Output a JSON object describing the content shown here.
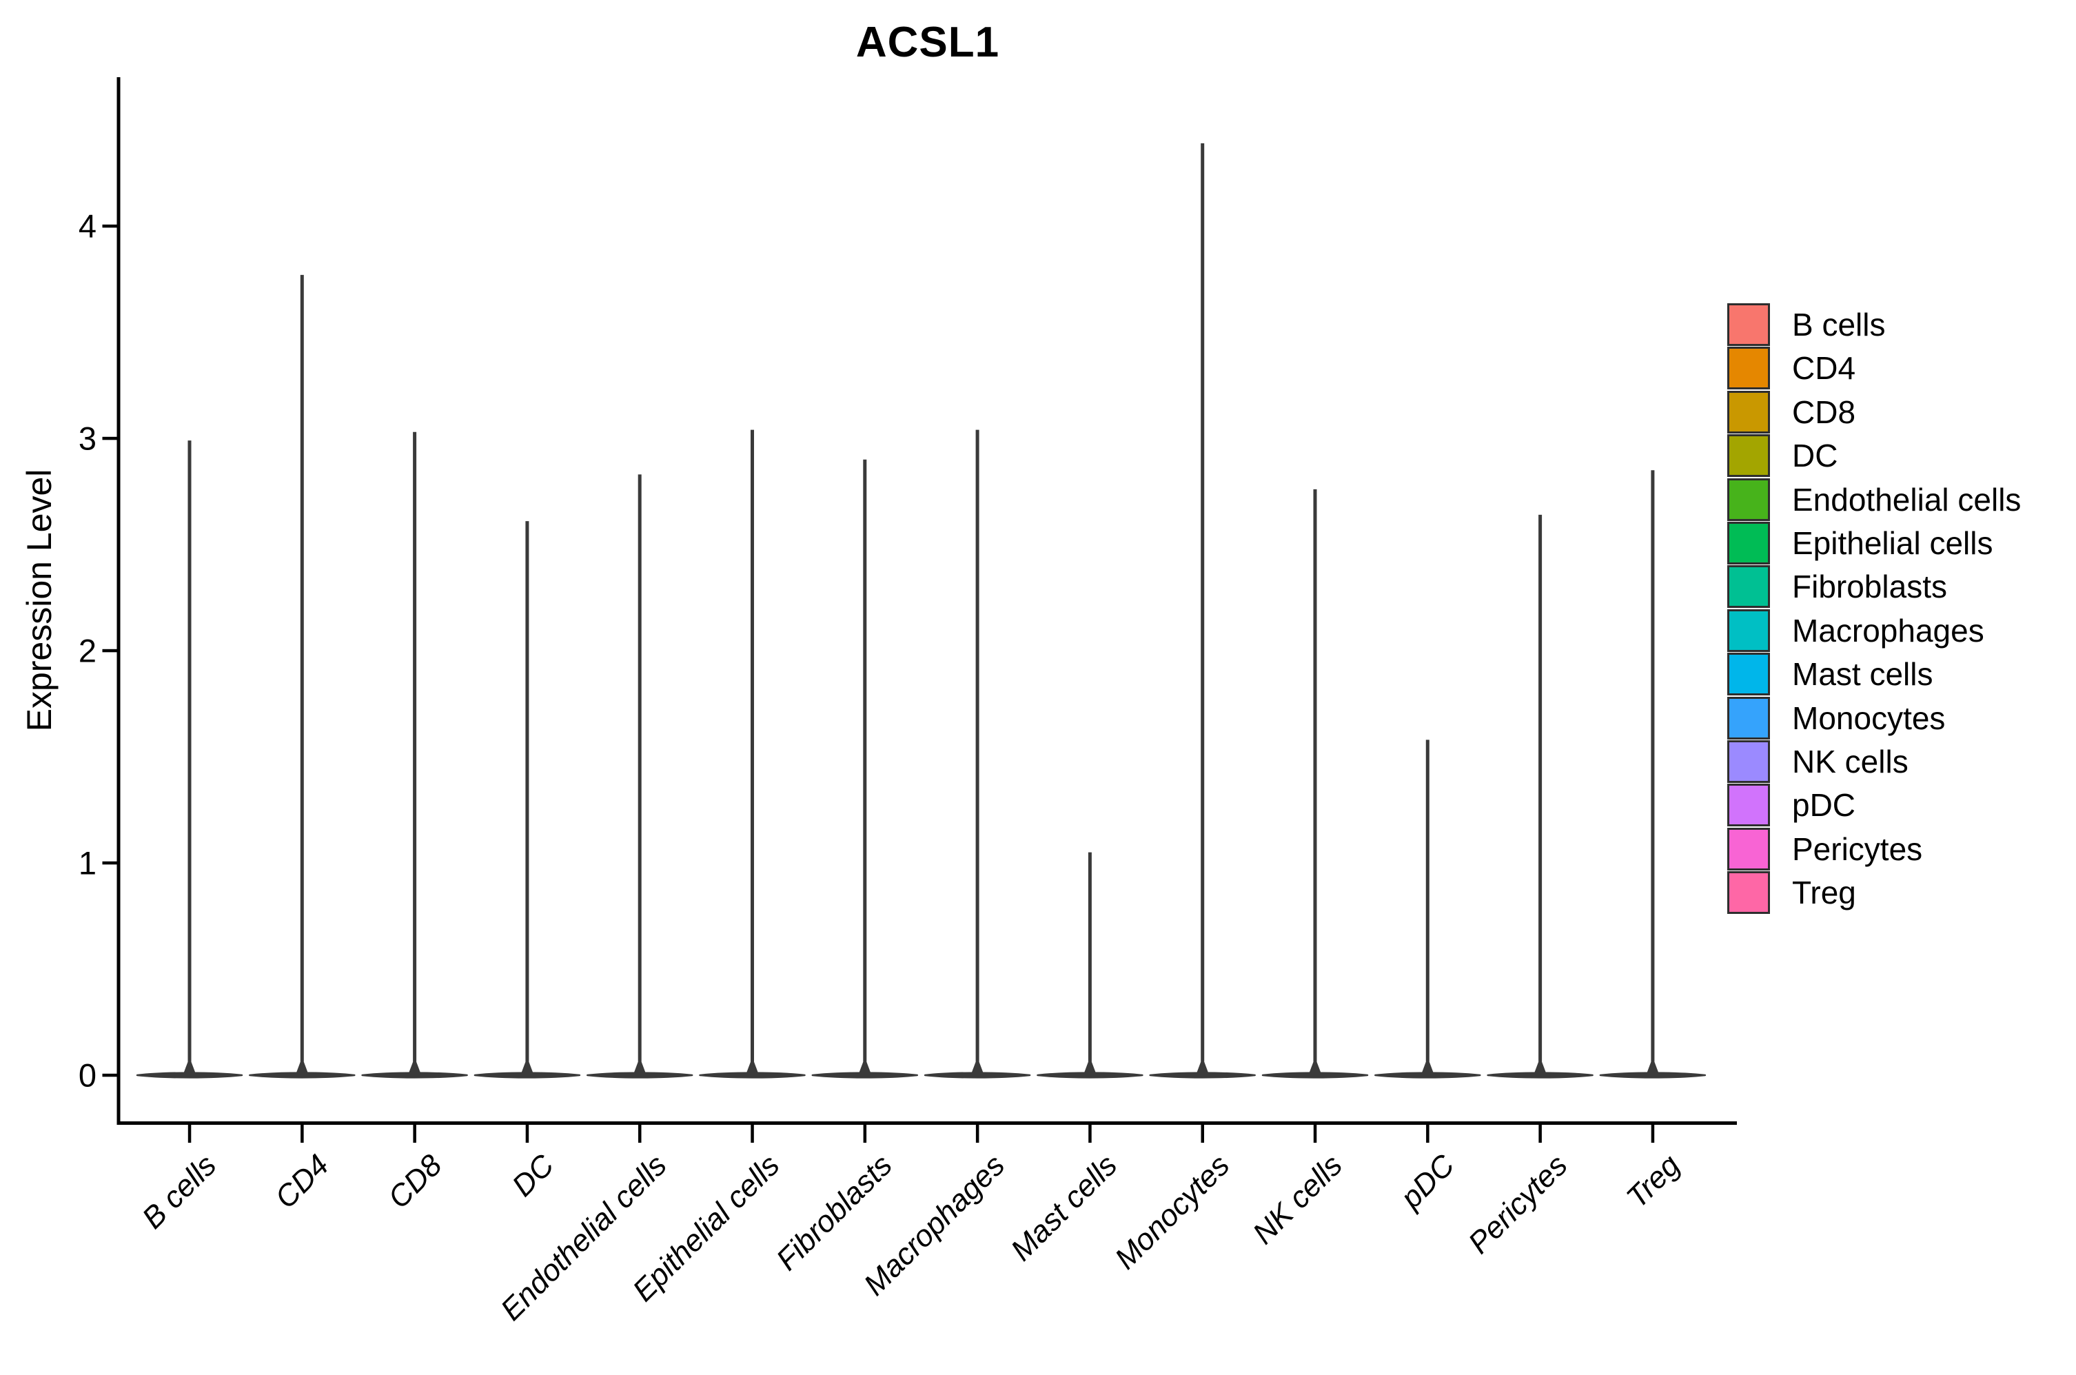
{
  "figure": {
    "title": "ACSL1",
    "y_axis": {
      "label": "Expression Level"
    }
  },
  "chart_data": {
    "type": "violin",
    "title": "ACSL1",
    "xlabel": "",
    "ylabel": "Expression Level",
    "categories": [
      "B cells",
      "CD4",
      "CD8",
      "DC",
      "Endothelial cells",
      "Epithelial cells",
      "Fibroblasts",
      "Macrophages",
      "Mast cells",
      "Monocytes",
      "NK cells",
      "pDC",
      "Pericytes",
      "Treg"
    ],
    "series": [
      {
        "name": "max_expression_level",
        "values": [
          2.99,
          3.77,
          3.03,
          2.61,
          2.83,
          3.04,
          2.9,
          3.04,
          1.05,
          4.39,
          2.76,
          1.58,
          2.64,
          2.85
        ]
      }
    ],
    "distribution_note": "expression mass concentrated at 0 for every cell type; each violin is a flat dense base at 0 with a thin spike up to the maximum",
    "y_ticks": [
      0,
      1,
      2,
      3,
      4
    ],
    "ylim": [
      -0.22,
      4.7
    ],
    "grid": false,
    "legend_position": "right",
    "colors": [
      "#F8766D",
      "#E58700",
      "#C99800",
      "#A3A500",
      "#47B31B",
      "#00BC55",
      "#00C093",
      "#00BFC4",
      "#00B6EA",
      "#35A3FC",
      "#9B8AFF",
      "#D173FC",
      "#F864D4",
      "#FE67A6"
    ]
  },
  "legend": {
    "items": [
      {
        "label": "B cells",
        "color": "#F8766D"
      },
      {
        "label": "CD4",
        "color": "#E58700"
      },
      {
        "label": "CD8",
        "color": "#C99800"
      },
      {
        "label": "DC",
        "color": "#A3A500"
      },
      {
        "label": "Endothelial cells",
        "color": "#47B31B"
      },
      {
        "label": "Epithelial cells",
        "color": "#00BC55"
      },
      {
        "label": "Fibroblasts",
        "color": "#00C093"
      },
      {
        "label": "Macrophages",
        "color": "#00BFC4"
      },
      {
        "label": "Mast cells",
        "color": "#00B6EA"
      },
      {
        "label": "Monocytes",
        "color": "#35A3FC"
      },
      {
        "label": "NK cells",
        "color": "#9B8AFF"
      },
      {
        "label": "pDC",
        "color": "#D173FC"
      },
      {
        "label": "Pericytes",
        "color": "#F864D4"
      },
      {
        "label": "Treg",
        "color": "#FE67A6"
      }
    ]
  }
}
